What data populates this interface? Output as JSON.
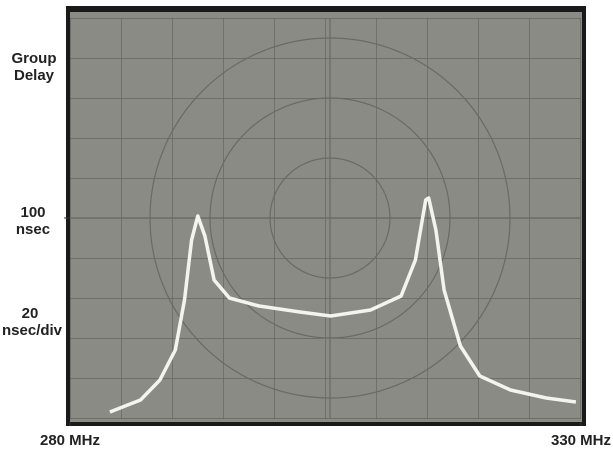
{
  "chart_data": {
    "type": "line",
    "y_label": "Group Delay",
    "annotation": "20 nsec/div",
    "xlim": [
      280,
      330
    ],
    "xticks": [
      {
        "value": 280,
        "label": "280 MHz"
      },
      {
        "value": 330,
        "label": "330 MHz"
      }
    ],
    "ylim": [
      0,
      200
    ],
    "yticks": [
      {
        "value": 100,
        "label": "100 nsec"
      }
    ],
    "series": [
      {
        "color": "#f4f4ee",
        "x": [
          283.9,
          286.9,
          288.8,
          290.3,
          291.2,
          291.9,
          292.5,
          293.2,
          294.1,
          295.6,
          298.5,
          302.5,
          305.5,
          309.4,
          312.4,
          313.8,
          314.8,
          315.1,
          315.8,
          316.6,
          318.2,
          320.1,
          323.1,
          326.6,
          329.5
        ],
        "values": [
          3,
          9,
          19,
          34,
          59,
          89,
          101,
          91,
          69,
          60,
          56,
          53,
          51,
          54,
          61,
          79,
          109,
          110,
          94,
          64,
          36,
          21,
          14,
          10,
          8
        ]
      }
    ]
  }
}
